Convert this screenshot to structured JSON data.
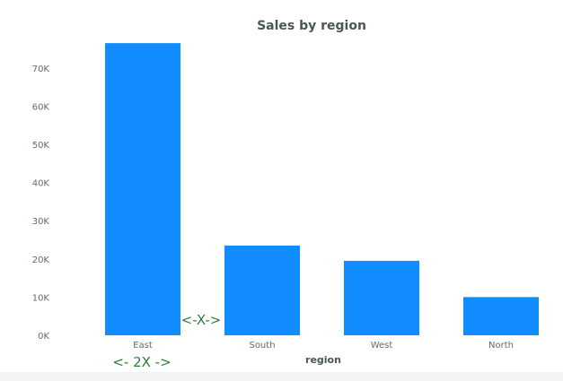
{
  "colors": {
    "bar": "#118dff",
    "text": "#5f6b6d",
    "title": "#4a5555",
    "annotation": "#2e7a3e",
    "strip": "#f3f3f3"
  },
  "chart_data": {
    "type": "bar",
    "title": "Sales by region",
    "xlabel": "region",
    "ylabel": "",
    "categories": [
      "East",
      "South",
      "West",
      "North"
    ],
    "values": [
      76500,
      23500,
      19500,
      10000
    ],
    "ylim": [
      0,
      77000
    ],
    "yticks": [
      0,
      10000,
      20000,
      30000,
      40000,
      50000,
      60000,
      70000
    ],
    "ytick_labels": [
      "0K",
      "10K",
      "20K",
      "30K",
      "40K",
      "50K",
      "60K",
      "70K"
    ],
    "grid": false,
    "legend": "none",
    "annotations": [
      {
        "text": "<-X->",
        "near": "gap-east-south"
      },
      {
        "text": "<-  2X ->",
        "near": "below-east"
      }
    ]
  }
}
